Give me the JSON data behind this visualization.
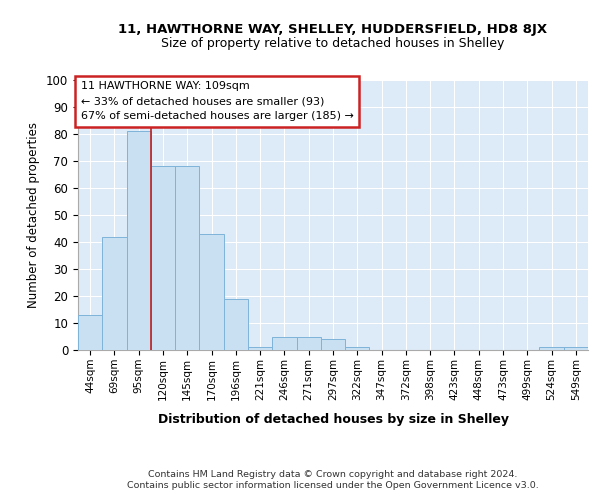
{
  "title1": "11, HAWTHORNE WAY, SHELLEY, HUDDERSFIELD, HD8 8JX",
  "title2": "Size of property relative to detached houses in Shelley",
  "xlabel": "Distribution of detached houses by size in Shelley",
  "ylabel": "Number of detached properties",
  "categories": [
    "44sqm",
    "69sqm",
    "95sqm",
    "120sqm",
    "145sqm",
    "170sqm",
    "196sqm",
    "221sqm",
    "246sqm",
    "271sqm",
    "297sqm",
    "322sqm",
    "347sqm",
    "372sqm",
    "398sqm",
    "423sqm",
    "448sqm",
    "473sqm",
    "499sqm",
    "524sqm",
    "549sqm"
  ],
  "values": [
    13,
    42,
    81,
    68,
    68,
    43,
    19,
    1,
    5,
    5,
    4,
    1,
    0,
    0,
    0,
    0,
    0,
    0,
    0,
    1,
    1
  ],
  "bar_color": "#c9dff2",
  "bar_edge_color": "#7fb3d9",
  "property_line_x": 2.5,
  "annotation_title": "11 HAWTHORNE WAY: 109sqm",
  "annotation_line1": "← 33% of detached houses are smaller (93)",
  "annotation_line2": "67% of semi-detached houses are larger (185) →",
  "annotation_box_edgecolor": "#cc2222",
  "ylim": [
    0,
    100
  ],
  "yticks": [
    0,
    10,
    20,
    30,
    40,
    50,
    60,
    70,
    80,
    90,
    100
  ],
  "footnote1": "Contains HM Land Registry data © Crown copyright and database right 2024.",
  "footnote2": "Contains public sector information licensed under the Open Government Licence v3.0.",
  "bg_color": "#ddeaf7",
  "bar_line_color": "#bb2222",
  "grid_color": "#ffffff"
}
